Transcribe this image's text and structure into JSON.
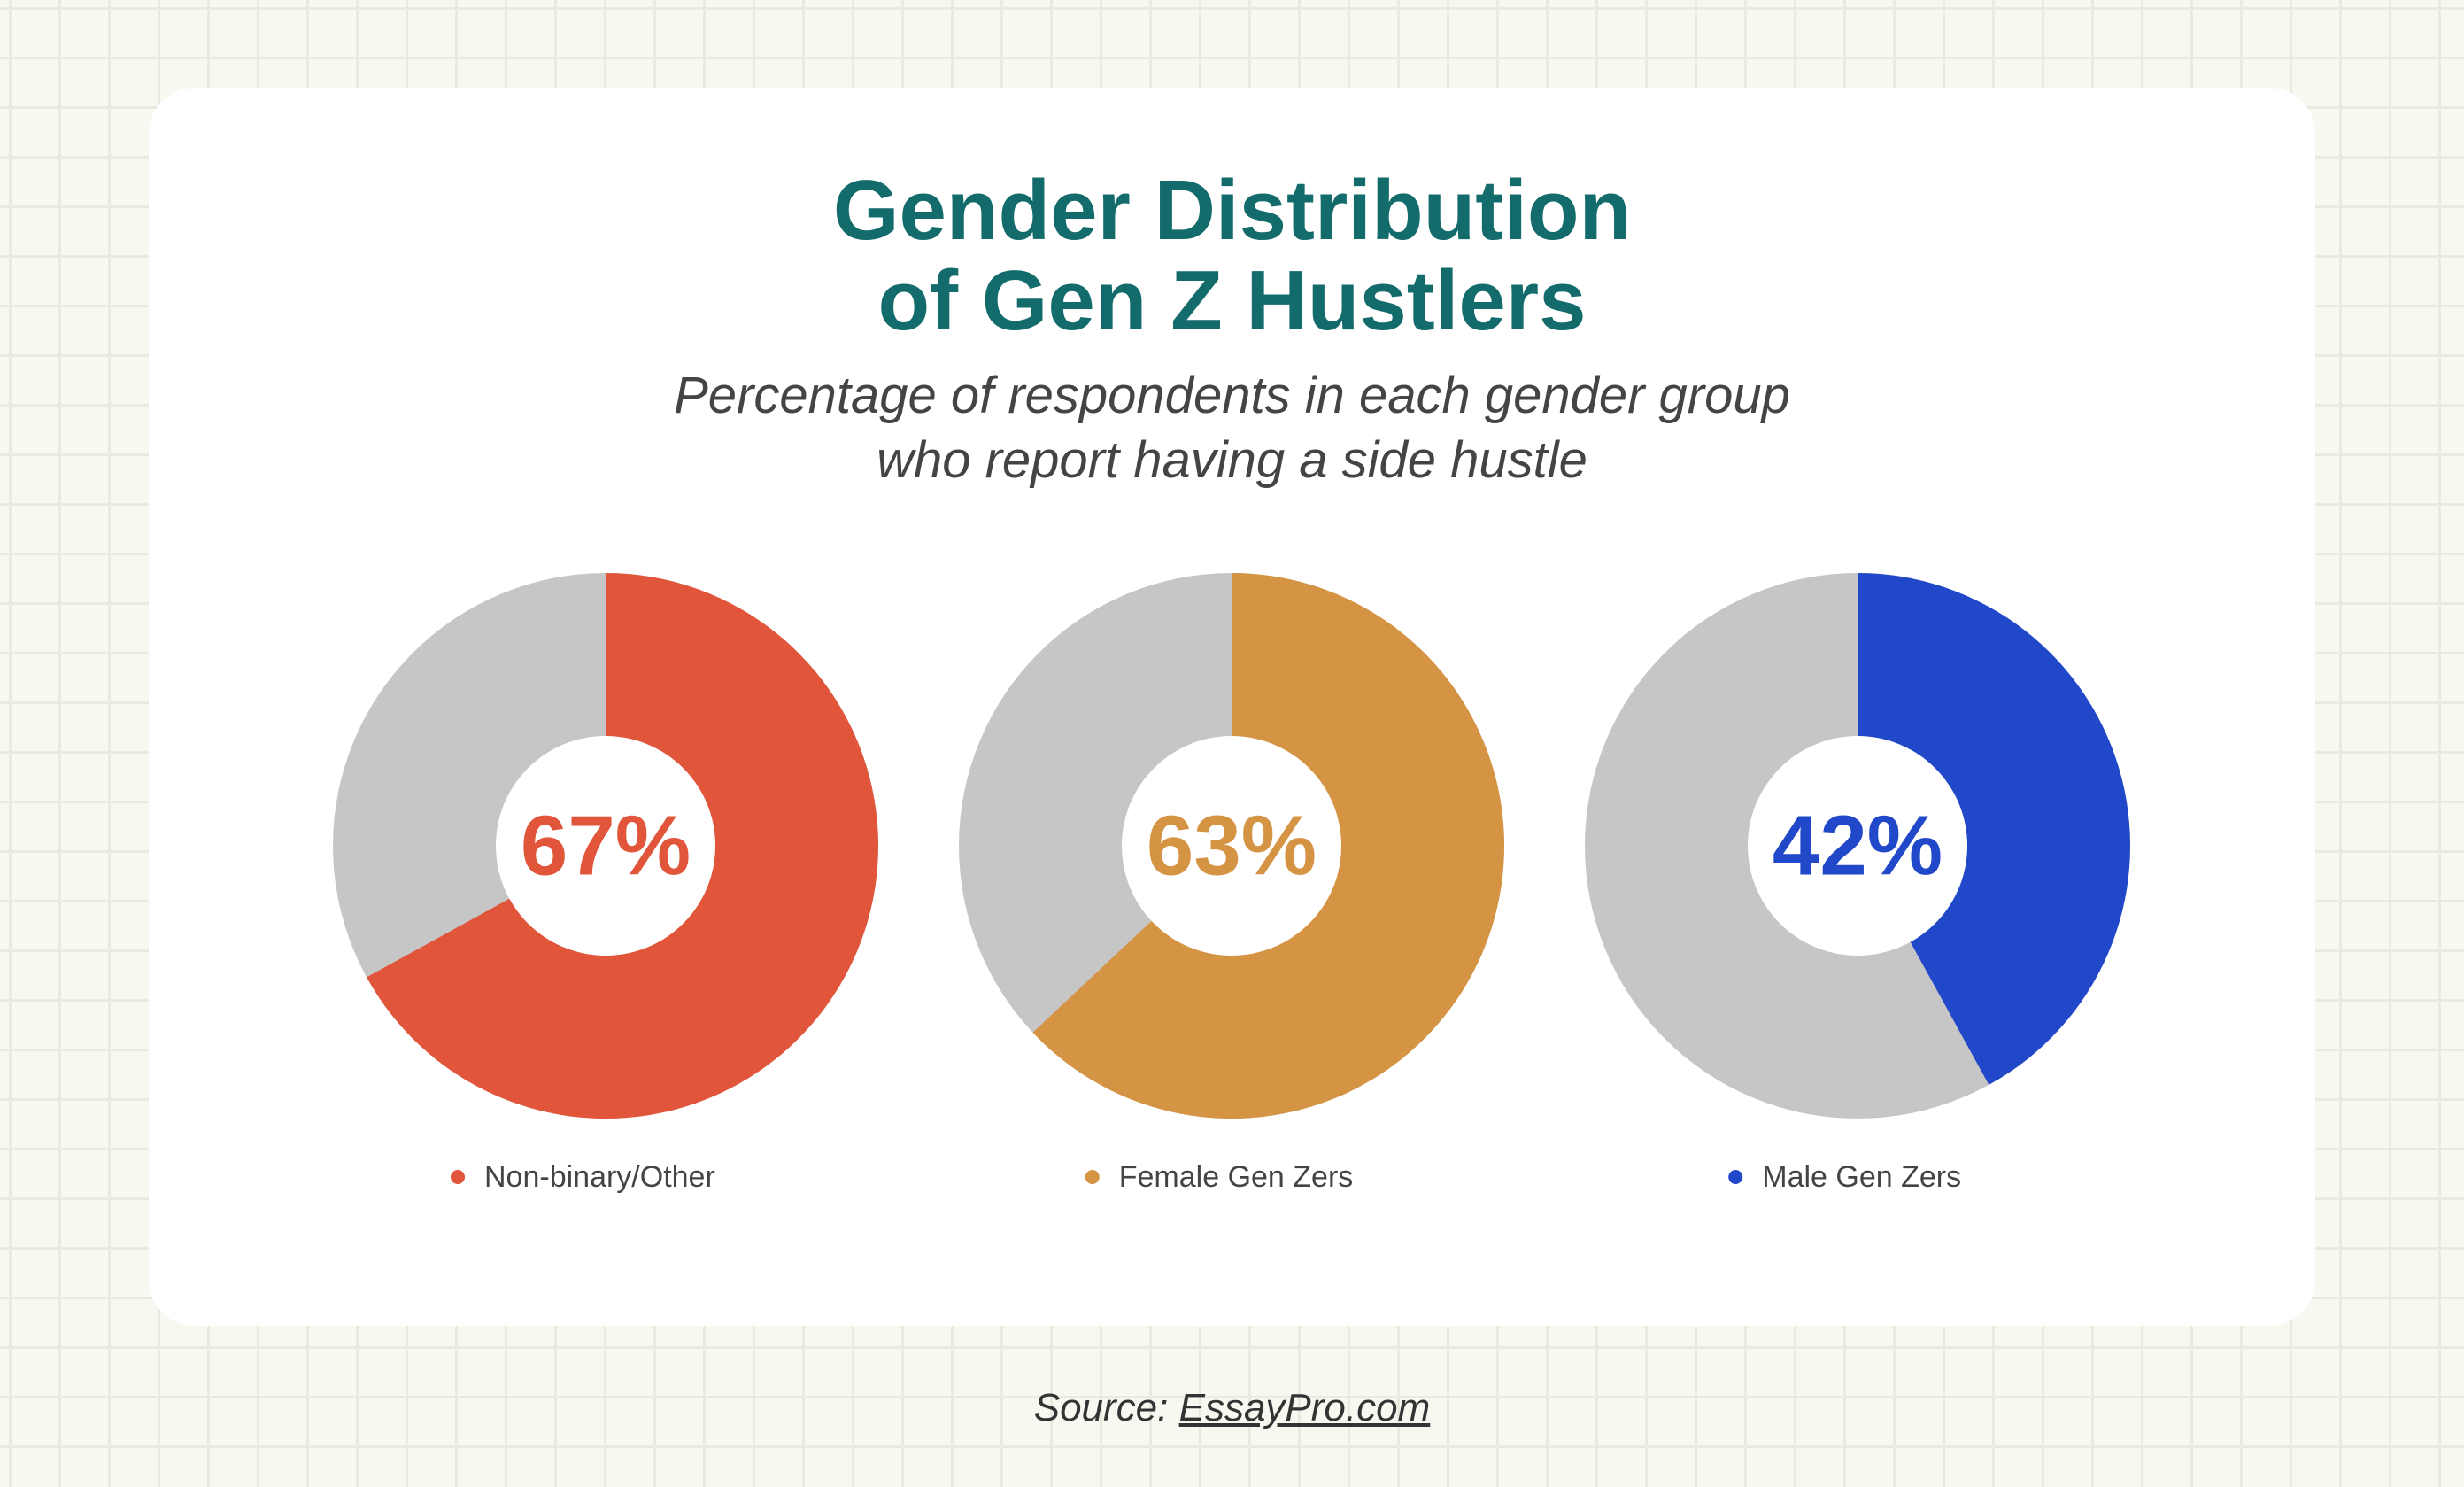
{
  "title_line1": "Gender Distribution",
  "title_line2": "of Gen Z Hustlers",
  "subtitle_line1": "Percentage of respondents in each gender group",
  "subtitle_line2": "who report having a side hustle",
  "source_label": "Source:",
  "source_link": "EssayPro.com",
  "colors": {
    "title": "#146b6b",
    "remainder": "#c6c6c6",
    "background": "#f7f9f1",
    "card": "#ffffff"
  },
  "chart_data": {
    "type": "pie",
    "style": "donut",
    "unit": "%",
    "title": "Gender Distribution of Gen Z Hustlers",
    "subtitle": "Percentage of respondents in each gender group who report having a side hustle",
    "legend_position": "below each donut",
    "series": [
      {
        "name": "Non-binary/Other",
        "value": 67,
        "label": "67%",
        "color": "#e1553b"
      },
      {
        "name": "Female Gen Zers",
        "value": 63,
        "label": "63%",
        "color": "#d59443"
      },
      {
        "name": "Male Gen Zers",
        "value": 42,
        "label": "42%",
        "color": "#2148c9"
      }
    ]
  }
}
